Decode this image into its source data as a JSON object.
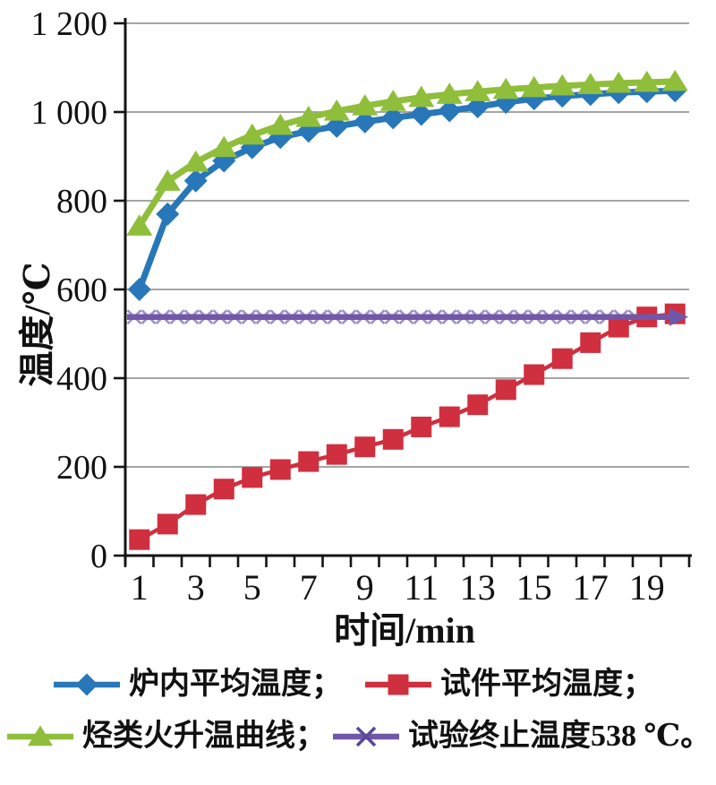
{
  "chart_data": {
    "type": "line",
    "title": "",
    "xlabel": "时间/min",
    "ylabel": "温度/℃",
    "x": [
      1,
      2,
      3,
      4,
      5,
      6,
      7,
      8,
      9,
      10,
      11,
      12,
      13,
      14,
      15,
      16,
      17,
      18,
      19,
      20
    ],
    "xlim": [
      0,
      20
    ],
    "ylim": [
      0,
      1200
    ],
    "xtick_labels": [
      "1",
      "3",
      "5",
      "7",
      "9",
      "11",
      "13",
      "15",
      "17",
      "19"
    ],
    "xtick_positions": [
      1,
      3,
      5,
      7,
      9,
      11,
      13,
      15,
      17,
      19
    ],
    "ytick_labels": [
      "0",
      "200",
      "400",
      "600",
      "800",
      "1 000",
      "1 200"
    ],
    "ytick_values": [
      0,
      200,
      400,
      600,
      800,
      1000,
      1200
    ],
    "grid": "horizontal",
    "legend_position": "bottom",
    "colors": {
      "grid": "#878787",
      "axis": "#141414",
      "furnace": "#2877B8",
      "specimen": "#CF2F3F",
      "hydrocarbon": "#8FBE3B",
      "termination": "#7157A8",
      "termination_x_marker": "#9C90C8"
    },
    "series": [
      {
        "id": "furnace",
        "name": "炉内平均温度",
        "legend_label": "炉内平均温度；",
        "marker": "diamond",
        "color": "#2877B8",
        "values": [
          600,
          770,
          845,
          890,
          920,
          943,
          957,
          968,
          978,
          987,
          995,
          1003,
          1012,
          1022,
          1030,
          1036,
          1040,
          1044,
          1046,
          1048
        ]
      },
      {
        "id": "specimen",
        "name": "试件平均温度",
        "legend_label": "试件平均温度；",
        "marker": "square",
        "color": "#CF2F3F",
        "values": [
          36,
          71,
          115,
          150,
          176,
          194,
          212,
          228,
          245,
          262,
          290,
          313,
          340,
          374,
          408,
          444,
          480,
          515,
          538,
          545
        ]
      },
      {
        "id": "hydrocarbon",
        "name": "烃类火升温曲线",
        "legend_label": "烃类火升温曲线；",
        "marker": "triangle",
        "color": "#8FBE3B",
        "values": [
          743,
          844,
          887,
          920,
          948,
          970,
          988,
          1002,
          1014,
          1024,
          1033,
          1040,
          1046,
          1051,
          1055,
          1059,
          1062,
          1065,
          1067,
          1069
        ]
      },
      {
        "id": "termination",
        "name": "试验终止温度538 ℃",
        "legend_label": "试验终止温度538 ℃。",
        "marker": "x",
        "color": "#7157A8",
        "marker_color": "#9C90C8",
        "constant": 538,
        "arrow_end": true
      }
    ]
  }
}
